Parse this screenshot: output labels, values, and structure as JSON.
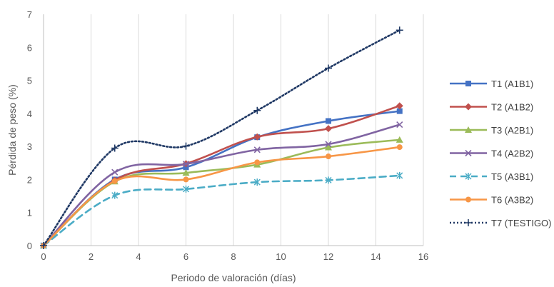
{
  "chart_data": {
    "type": "line",
    "xlabel": "Periodo de valoración (días)",
    "ylabel": "Pérdida de peso (%)",
    "xlim": [
      0,
      16
    ],
    "ylim": [
      0,
      7
    ],
    "xticks": [
      0,
      2,
      4,
      6,
      8,
      10,
      12,
      14,
      16
    ],
    "yticks": [
      0,
      1,
      2,
      3,
      4,
      5,
      6,
      7
    ],
    "grid": "vertical",
    "legend_position": "right",
    "x": [
      0,
      3,
      6,
      9,
      12,
      15
    ],
    "series": [
      {
        "name": "T1 (A1B1)",
        "color": "#4472c4",
        "marker": "square",
        "dash": "solid",
        "values": [
          0,
          2.0,
          2.37,
          3.28,
          3.77,
          4.07
        ]
      },
      {
        "name": "T2 (A1B2)",
        "color": "#c0504d",
        "marker": "diamond",
        "dash": "solid",
        "values": [
          0,
          1.98,
          2.48,
          3.29,
          3.54,
          4.23
        ]
      },
      {
        "name": "T3 (A2B1)",
        "color": "#9bbb59",
        "marker": "triangle",
        "dash": "solid",
        "values": [
          0,
          1.94,
          2.2,
          2.45,
          2.97,
          3.2
        ]
      },
      {
        "name": "T4 (A2B2)",
        "color": "#8064a2",
        "marker": "x",
        "dash": "solid",
        "values": [
          0,
          2.22,
          2.47,
          2.9,
          3.07,
          3.66
        ]
      },
      {
        "name": "T5 (A3B1)",
        "color": "#4bacc6",
        "marker": "star",
        "dash": "dashed",
        "values": [
          0,
          1.52,
          1.71,
          1.92,
          1.98,
          2.12
        ]
      },
      {
        "name": "T6 (A3B2)",
        "color": "#f79646",
        "marker": "circle",
        "dash": "solid",
        "values": [
          0,
          1.95,
          2.0,
          2.52,
          2.7,
          2.98
        ]
      },
      {
        "name": "T7 (TESTIGO)",
        "color": "#1f3864",
        "marker": "plus",
        "dash": "dotted",
        "values": [
          0,
          2.95,
          3.01,
          4.09,
          5.37,
          6.52
        ]
      }
    ]
  }
}
